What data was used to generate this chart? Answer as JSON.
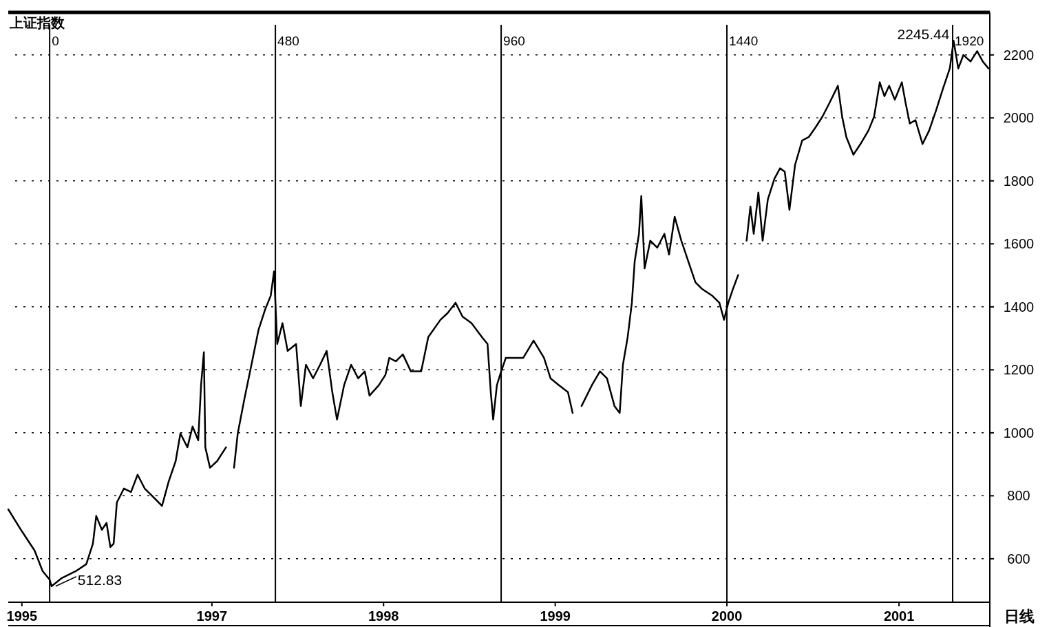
{
  "chart_data": {
    "type": "line",
    "title": "上证指数",
    "x": [
      "1995-10-26",
      "1995-11-22",
      "1995-12-21",
      "1996-01-07",
      "1996-01-22",
      "1996-01-26",
      "1996-02-17",
      "1996-03-18",
      "1996-04-09",
      "1996-04-23",
      "1996-04-30",
      "1996-05-12",
      "1996-05-22",
      "1996-05-30",
      "1996-06-06",
      "1996-06-13",
      "1996-06-28",
      "1996-07-13",
      "1996-07-27",
      "1996-08-11",
      "1996-08-26",
      "1996-09-17",
      "1996-10-01",
      "1996-10-16",
      "1996-10-26",
      "1996-11-10",
      "1996-11-21",
      "1996-12-03",
      "1996-12-09",
      "1996-12-15",
      "1996-12-18",
      "1996-12-28",
      "1997-01-12",
      "1997-01-31",
      "1997-02-15",
      "1997-02-17",
      "1997-02-25",
      "1997-03-11",
      "1997-03-26",
      "1997-04-10",
      "1997-04-24",
      "1997-05-06",
      "1997-05-13",
      "1997-05-20",
      "1997-05-31",
      "1997-06-11",
      "1997-06-29",
      "1997-07-09",
      "1997-07-20",
      "1997-08-04",
      "1997-08-19",
      "1997-09-02",
      "1997-09-14",
      "1997-09-24",
      "1997-10-09",
      "1997-10-24",
      "1997-11-08",
      "1997-11-22",
      "1997-12-02",
      "1997-12-22",
      "1998-01-05",
      "1998-01-13",
      "1998-01-27",
      "1998-02-11",
      "1998-02-28",
      "1998-03-22",
      "1998-04-06",
      "1998-05-02",
      "1998-05-17",
      "1998-06-03",
      "1998-06-18",
      "1998-07-07",
      "1998-07-29",
      "1998-08-10",
      "1998-08-17",
      "1998-08-22",
      "1998-08-30",
      "1998-09-08",
      "1998-09-18",
      "1998-10-03",
      "1998-10-25",
      "1998-11-16",
      "1998-12-08",
      "1998-12-22",
      "1999-01-09",
      "1999-01-28",
      "1999-02-07",
      "1999-02-15",
      "1999-02-26",
      "1999-03-20",
      "1999-04-06",
      "1999-04-21",
      "1999-05-07",
      "1999-05-18",
      "1999-05-25",
      "1999-06-04",
      "1999-06-13",
      "1999-06-19",
      "1999-06-28",
      "1999-07-03",
      "1999-07-10",
      "1999-07-22",
      "1999-08-06",
      "1999-08-21",
      "1999-08-31",
      "1999-09-12",
      "1999-09-26",
      "1999-10-11",
      "1999-10-26",
      "1999-11-09",
      "1999-12-01",
      "1999-12-16",
      "1999-12-26",
      "2000-01-04",
      "2000-01-14",
      "2000-01-25",
      "2000-02-03",
      "2000-02-12",
      "2000-02-20",
      "2000-02-27",
      "2000-03-08",
      "2000-03-17",
      "2000-03-28",
      "2000-04-11",
      "2000-04-23",
      "2000-05-03",
      "2000-05-13",
      "2000-05-25",
      "2000-06-09",
      "2000-06-23",
      "2000-07-08",
      "2000-07-22",
      "2000-08-06",
      "2000-08-24",
      "2000-09-02",
      "2000-09-11",
      "2000-09-26",
      "2000-10-11",
      "2000-10-28",
      "2000-11-09",
      "2000-11-21",
      "2000-12-01",
      "2000-12-11",
      "2000-12-23",
      "2001-01-07",
      "2001-01-15",
      "2001-01-24",
      "2001-02-05",
      "2001-02-20",
      "2001-03-06",
      "2001-03-21",
      "2001-04-04",
      "2001-04-19",
      "2001-04-27",
      "2001-05-07",
      "2001-05-18",
      "2001-06-02",
      "2001-06-16",
      "2001-06-28",
      "2001-07-10"
    ],
    "series": [
      {
        "color": "#000000",
        "values": [
          757,
          692,
          626,
          561,
          534,
          513,
          539,
          561,
          583,
          648,
          736,
          692,
          714,
          637,
          648,
          779,
          823,
          812,
          867,
          823,
          801,
          768,
          845,
          910,
          998,
          954,
          1020,
          976,
          1151,
          1256,
          954,
          889,
          910,
          954,
          null,
          889,
          998,
          1107,
          1216,
          1326,
          1391,
          1435,
          1512,
          1282,
          1348,
          1260,
          1282,
          1085,
          1216,
          1173,
          1216,
          1260,
          1129,
          1042,
          1151,
          1216,
          1173,
          1195,
          1118,
          1151,
          1184,
          1238,
          1227,
          1249,
          1195,
          1195,
          1304,
          1359,
          1380,
          1413,
          1369,
          1348,
          1304,
          1282,
          1129,
          1042,
          1151,
          1195,
          1238,
          1238,
          1238,
          1293,
          1238,
          1173,
          1151,
          1129,
          1063,
          null,
          1085,
          1151,
          1195,
          1173,
          1085,
          1063,
          1216,
          1304,
          1413,
          1544,
          1632,
          1752,
          1522,
          1610,
          1588,
          1632,
          1566,
          1686,
          1610,
          1544,
          1478,
          1457,
          1435,
          1413,
          1359,
          1413,
          1457,
          1501,
          null,
          1610,
          1719,
          1632,
          1763,
          1610,
          1741,
          1807,
          1840,
          1829,
          1708,
          1851,
          1928,
          1939,
          1971,
          2004,
          2047,
          2102,
          2004,
          1939,
          1883,
          1917,
          1960,
          2004,
          2113,
          2069,
          2102,
          2058,
          2113,
          2047,
          1982,
          1993,
          1917,
          1960,
          2025,
          2091,
          2157,
          2245,
          2157,
          2200,
          2179,
          2212,
          2179,
          2157
        ]
      }
    ],
    "xlim": [
      "1995-10-26",
      "2001-07-13"
    ],
    "xticks": [
      {
        "value": "1995-11-24",
        "label": "1995"
      },
      {
        "value": "1997-01-01",
        "label": "1997"
      },
      {
        "value": "1998-01-01",
        "label": "1998"
      },
      {
        "value": "1999-01-01",
        "label": "1999"
      },
      {
        "value": "2000-01-01",
        "label": "2000"
      },
      {
        "value": "2001-01-01",
        "label": "2001"
      }
    ],
    "ylim": [
      462,
      2335
    ],
    "yticks": [
      600,
      800,
      1000,
      1200,
      1400,
      1600,
      1800,
      2000,
      2200
    ],
    "grid": "y",
    "ref_lines": [
      {
        "axis": "x",
        "value": "1996-01-22",
        "label": "0",
        "color": "#000000"
      },
      {
        "axis": "x",
        "value": "1997-05-16",
        "label": "480",
        "color": "#000000"
      },
      {
        "axis": "x",
        "value": "1998-09-08",
        "label": "960",
        "color": "#000000"
      },
      {
        "axis": "x",
        "value": "2000-01-01",
        "label": "1440",
        "color": "#000000"
      },
      {
        "axis": "x",
        "value": "2001-04-25",
        "label": "1920",
        "color": "#000000"
      }
    ],
    "annotations": [
      {
        "text": "512.83",
        "x": "1996-01-26",
        "y": 512.83
      },
      {
        "text": "2245.44",
        "x": "2001-04-27",
        "y": 2245.44
      },
      "日线"
    ]
  }
}
